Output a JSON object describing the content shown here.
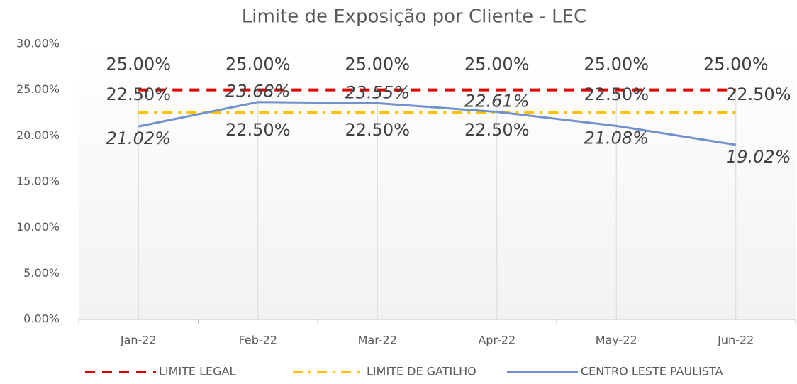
{
  "chart_data": {
    "type": "line",
    "title": "Limite de Exposição por Cliente - LEC",
    "categories": [
      "Jan-22",
      "Feb-22",
      "Mar-22",
      "Apr-22",
      "May-22",
      "Jun-22"
    ],
    "ylim": [
      0,
      30
    ],
    "yticks": [
      {
        "value": 0,
        "label": "0.00%"
      },
      {
        "value": 5,
        "label": "5.00%"
      },
      {
        "value": 10,
        "label": "10.00%"
      },
      {
        "value": 15,
        "label": "15.00%"
      },
      {
        "value": 20,
        "label": "20.00%"
      },
      {
        "value": 25,
        "label": "25.00%"
      },
      {
        "value": 30,
        "label": "30.00%"
      }
    ],
    "grid": true,
    "legend": "bottom",
    "series": [
      {
        "name": "LIMITE LEGAL",
        "color": "#e00000",
        "style": "dashed",
        "values": [
          25,
          25,
          25,
          25,
          25,
          25
        ],
        "value_labels": [
          "25.00%",
          "25.00%",
          "25.00%",
          "25.00%",
          "25.00%",
          "25.00%"
        ]
      },
      {
        "name": "LIMITE DE GATILHO",
        "color": "#ffc000",
        "style": "dashdot",
        "values": [
          22.5,
          22.5,
          22.5,
          22.5,
          22.5,
          22.5
        ],
        "value_labels": [
          "22.50%",
          "22.50%",
          "22.50%",
          "22.50%",
          "22.50%",
          "22.50%"
        ]
      },
      {
        "name": "CENTRO LESTE PAULISTA",
        "color": "#7092cc",
        "style": "solid",
        "values": [
          21.02,
          23.68,
          23.55,
          22.61,
          21.08,
          19.02
        ],
        "value_labels": [
          "21.02%",
          "23.68%",
          "23.55%",
          "22.61%",
          "21.08%",
          "19.02%"
        ]
      }
    ]
  }
}
